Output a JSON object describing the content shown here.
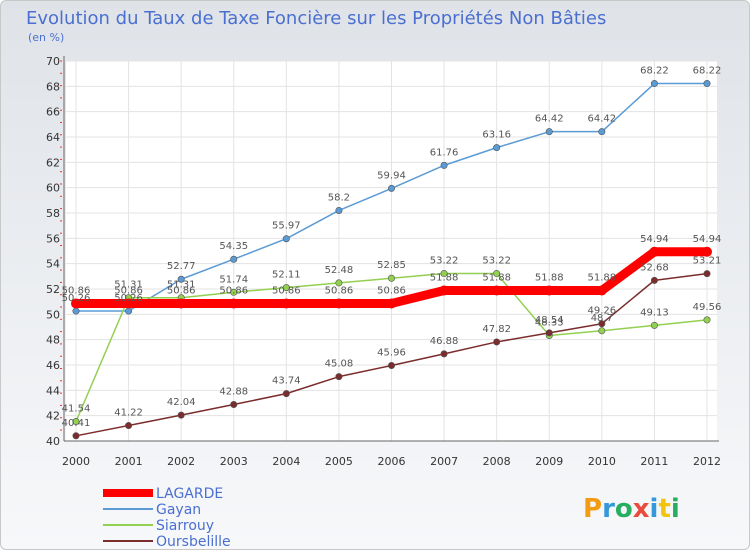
{
  "chart_data": {
    "type": "line",
    "title": "Evolution du Taux de Taxe Foncière sur les Propriétés Non Bâties",
    "subtitle": "(en %)",
    "xlabel": "",
    "ylabel": "(en %)",
    "x": [
      "2000",
      "2001",
      "2002",
      "2003",
      "2004",
      "2005",
      "2006",
      "2007",
      "2008",
      "2009",
      "2010",
      "2011",
      "2012"
    ],
    "ylim": [
      40,
      70
    ],
    "yticks": [
      40,
      42,
      44,
      46,
      48,
      50,
      52,
      54,
      56,
      58,
      60,
      62,
      64,
      66,
      68,
      70
    ],
    "grid": true,
    "series": [
      {
        "name": "LAGARDE",
        "color": "#ff0000",
        "values": [
          50.86,
          50.86,
          50.86,
          50.86,
          50.86,
          50.86,
          50.86,
          51.88,
          51.88,
          51.88,
          51.88,
          54.94,
          54.94
        ],
        "labels": [
          "50.86",
          "50.86",
          "50.86",
          "50.86",
          "50.86",
          "50.86",
          "50.86",
          "51.88",
          "51.88",
          "51.88",
          "51.88",
          "54.94",
          "54.94"
        ]
      },
      {
        "name": "Gayan",
        "color": "#5b9bd5",
        "values": [
          50.26,
          50.26,
          52.77,
          54.35,
          55.97,
          58.2,
          59.94,
          61.76,
          63.16,
          64.42,
          64.42,
          68.22,
          68.22
        ],
        "labels": [
          "50.26",
          "50.26",
          "52.77",
          "54.35",
          "55.97",
          "58.2",
          "59.94",
          "61.76",
          "63.16",
          "64.42",
          "64.42",
          "68.22",
          "68.22"
        ]
      },
      {
        "name": "Siarrouy",
        "color": "#92d050",
        "values": [
          41.54,
          51.31,
          51.31,
          51.74,
          52.11,
          52.48,
          52.85,
          53.22,
          53.22,
          48.33,
          48.7,
          49.13,
          49.56
        ],
        "labels": [
          "41.54",
          "51.31",
          "51.31",
          "51.74",
          "52.11",
          "52.48",
          "52.85",
          "53.22",
          "53.22",
          "48.33",
          "48.7",
          "49.13",
          "49.56"
        ]
      },
      {
        "name": "Oursbelille",
        "color": "#7b2c2c",
        "values": [
          40.41,
          41.22,
          42.04,
          42.88,
          43.74,
          45.08,
          45.96,
          46.88,
          47.82,
          48.54,
          49.26,
          52.68,
          53.21
        ],
        "labels": [
          "40.41",
          "41.22",
          "42.04",
          "42.88",
          "43.74",
          "45.08",
          "45.96",
          "46.88",
          "47.82",
          "48.54",
          "49.26",
          "52.68",
          "53.21"
        ]
      }
    ]
  },
  "logo": {
    "text": "Proxiti"
  }
}
